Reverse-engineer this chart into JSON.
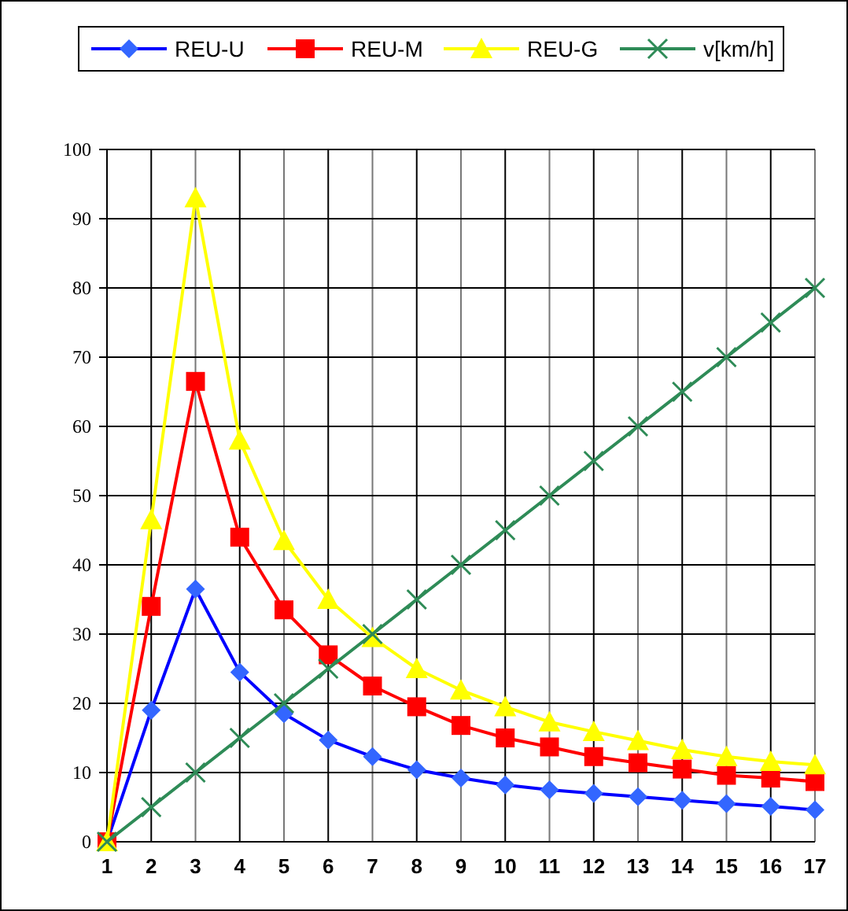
{
  "chart_data": {
    "type": "line",
    "x": [
      1,
      2,
      3,
      4,
      5,
      6,
      7,
      8,
      9,
      10,
      11,
      12,
      13,
      14,
      15,
      16,
      17
    ],
    "xlim": [
      1,
      17
    ],
    "xticks": [
      1,
      2,
      3,
      4,
      5,
      6,
      7,
      8,
      9,
      10,
      11,
      12,
      13,
      14,
      15,
      16,
      17
    ],
    "ylim": [
      0,
      100
    ],
    "yticks": [
      0,
      10,
      20,
      30,
      40,
      50,
      60,
      70,
      80,
      90,
      100
    ],
    "grid": true,
    "legend": "top",
    "series": [
      {
        "name": "REU-U",
        "color": "#0000ff",
        "marker": "diamond",
        "values": [
          0,
          19,
          36.5,
          24.5,
          18.5,
          14.7,
          12.3,
          10.4,
          9.2,
          8.2,
          7.5,
          7.0,
          6.5,
          6.0,
          5.5,
          5.1,
          4.6
        ]
      },
      {
        "name": "REU-M",
        "color": "#ff0000",
        "marker": "square",
        "values": [
          0,
          34,
          66.5,
          44,
          33.5,
          27,
          22.5,
          19.5,
          16.8,
          15,
          13.7,
          12.3,
          11.4,
          10.5,
          9.6,
          9.2,
          8.7
        ]
      },
      {
        "name": "REU-G",
        "color": "#ffff00",
        "marker": "triangle",
        "values": [
          0,
          46.5,
          93,
          58,
          43.5,
          35,
          29.5,
          25,
          21.9,
          19.5,
          17.3,
          15.9,
          14.6,
          13.3,
          12.3,
          11.6,
          11.1
        ]
      },
      {
        "name": "v[km/h]",
        "color": "#2e8b57",
        "marker": "cross",
        "values": [
          0,
          5,
          10,
          15,
          20,
          25,
          30,
          35,
          40,
          45,
          50,
          55,
          60,
          65,
          70,
          75,
          80
        ]
      }
    ]
  }
}
